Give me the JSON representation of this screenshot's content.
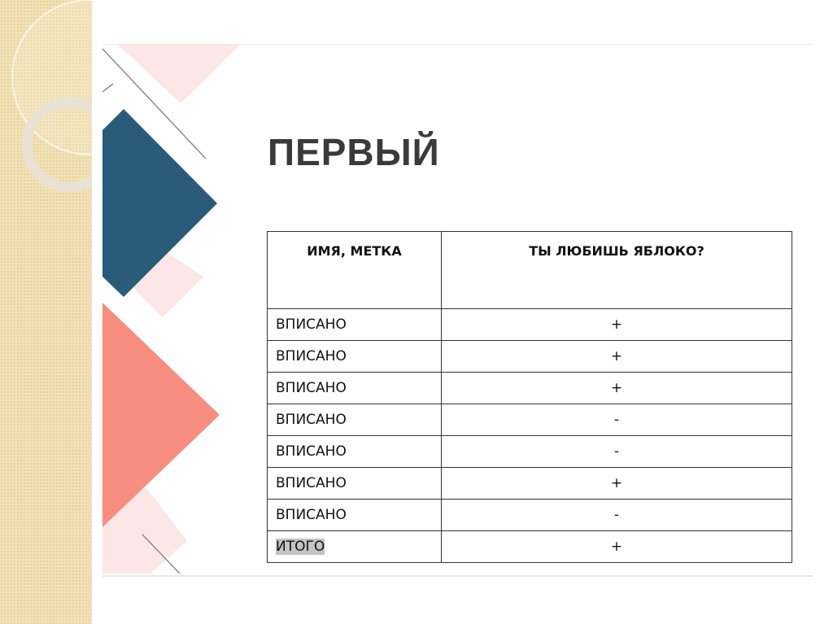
{
  "slide": {
    "title": "ПЕРВЫЙ",
    "colors": {
      "navy": "#2b5b7a",
      "salmon": "#f78e80",
      "light_pink": "#fce5e5",
      "background_strip": "#f3e2b6"
    },
    "table": {
      "headers": [
        "ИМЯ, МЕТКА",
        "ТЫ ЛЮБИШЬ ЯБЛОКО?"
      ],
      "rows": [
        [
          "ВПИСАНО",
          "+"
        ],
        [
          "ВПИСАНО",
          "+"
        ],
        [
          "ВПИСАНО",
          "+"
        ],
        [
          "ВПИСАНО",
          "-"
        ],
        [
          "ВПИСАНО",
          "-"
        ],
        [
          "ВПИСАНО",
          "+"
        ],
        [
          "ВПИСАНО",
          "-"
        ]
      ],
      "total": [
        "ИТОГО",
        "+"
      ]
    }
  }
}
